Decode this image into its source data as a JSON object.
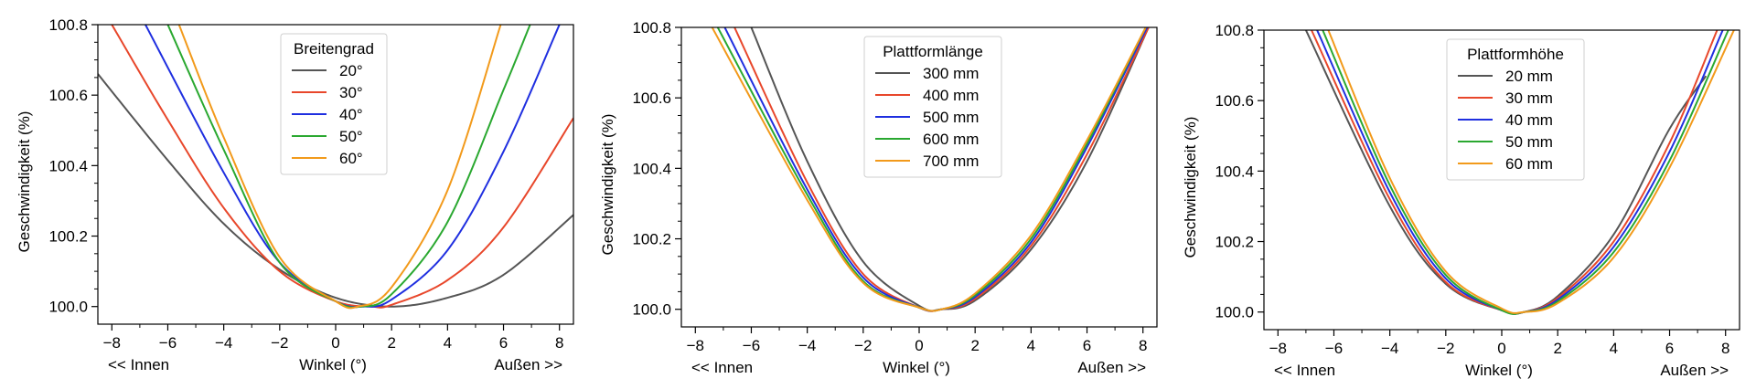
{
  "chart_data": [
    {
      "type": "line",
      "title": "",
      "xlabel": "Winkel (°)",
      "xlabel_left": "<< Innen",
      "xlabel_right": "Außen >>",
      "ylabel": "Geschwindigkeit (%)",
      "xlim": [
        -8.5,
        8.5
      ],
      "ylim": [
        99.95,
        100.8
      ],
      "xticks": [
        -8,
        -6,
        -4,
        -2,
        0,
        2,
        4,
        6,
        8
      ],
      "xtick_labels": [
        "−8",
        "−6",
        "−4",
        "−2",
        "0",
        "2",
        "4",
        "6",
        "8"
      ],
      "yticks": [
        100.0,
        100.2,
        100.4,
        100.6,
        100.8
      ],
      "ytick_labels": [
        "100.0",
        "100.2",
        "100.4",
        "100.6",
        "100.8"
      ],
      "grid": false,
      "legend": {
        "title": "Breitengrad",
        "placement": "top-center"
      },
      "series": [
        {
          "name": "20°",
          "color": "#555555",
          "min_x": 2.0,
          "min_y": 100.0,
          "points": [
            [
              -8.5,
              100.66
            ],
            [
              -6,
              100.415
            ],
            [
              -4,
              100.235
            ],
            [
              -2,
              100.105
            ],
            [
              0,
              100.025
            ],
            [
              2,
              100.0
            ],
            [
              4,
              100.025
            ],
            [
              6,
              100.09
            ],
            [
              8.5,
              100.26
            ]
          ]
        },
        {
          "name": "30°",
          "color": "#e8472b",
          "min_x": 1.3,
          "min_y": 100.0,
          "points": [
            [
              -8,
              100.8
            ],
            [
              -6,
              100.53
            ],
            [
              -4,
              100.28
            ],
            [
              -2,
              100.1
            ],
            [
              0,
              100.015
            ],
            [
              2,
              100.005
            ],
            [
              4,
              100.075
            ],
            [
              6,
              100.225
            ],
            [
              8.5,
              100.535
            ]
          ]
        },
        {
          "name": "40°",
          "color": "#1f2fe0",
          "min_x": 1.0,
          "min_y": 100.0,
          "points": [
            [
              -6.8,
              100.8
            ],
            [
              -4,
              100.38
            ],
            [
              -2,
              100.125
            ],
            [
              0,
              100.015
            ],
            [
              2,
              100.02
            ],
            [
              4,
              100.16
            ],
            [
              6,
              100.44
            ],
            [
              8,
              100.8
            ]
          ]
        },
        {
          "name": "50°",
          "color": "#2aa830",
          "min_x": 0.9,
          "min_y": 100.0,
          "points": [
            [
              -6.0,
              100.8
            ],
            [
              -4,
              100.445
            ],
            [
              -2,
              100.125
            ],
            [
              0,
              100.015
            ],
            [
              2,
              100.035
            ],
            [
              4,
              100.24
            ],
            [
              6,
              100.615
            ],
            [
              6.95,
              100.8
            ]
          ]
        },
        {
          "name": "60°",
          "color": "#f29a1b",
          "min_x": 0.8,
          "min_y": 100.0,
          "points": [
            [
              -5.6,
              100.8
            ],
            [
              -4,
              100.48
            ],
            [
              -2,
              100.14
            ],
            [
              0,
              100.015
            ],
            [
              2,
              100.055
            ],
            [
              4,
              100.33
            ],
            [
              5.9,
              100.8
            ]
          ]
        }
      ]
    },
    {
      "type": "line",
      "title": "",
      "xlabel": "Winkel (°)",
      "xlabel_left": "<< Innen",
      "xlabel_right": "Außen >>",
      "ylabel": "Geschwindigkeit (%)",
      "xlim": [
        -8.5,
        8.5
      ],
      "ylim": [
        99.95,
        100.8
      ],
      "xticks": [
        -8,
        -6,
        -4,
        -2,
        0,
        2,
        4,
        6,
        8
      ],
      "xtick_labels": [
        "−8",
        "−6",
        "−4",
        "−2",
        "0",
        "2",
        "4",
        "6",
        "8"
      ],
      "yticks": [
        100.0,
        100.2,
        100.4,
        100.6,
        100.8
      ],
      "ytick_labels": [
        "100.0",
        "100.2",
        "100.4",
        "100.6",
        "100.8"
      ],
      "grid": false,
      "legend": {
        "title": "Plattformlänge",
        "placement": "top-center"
      },
      "series": [
        {
          "name": "300 mm",
          "color": "#555555",
          "min_x": 0.8,
          "min_y": 100.0,
          "points": [
            [
              -6.0,
              100.8
            ],
            [
              -4,
              100.42
            ],
            [
              -2,
              100.135
            ],
            [
              0,
              100.01
            ],
            [
              2,
              100.025
            ],
            [
              4,
              100.17
            ],
            [
              6,
              100.42
            ],
            [
              8.2,
              100.8
            ]
          ]
        },
        {
          "name": "400 mm",
          "color": "#e8472b",
          "min_x": 0.8,
          "min_y": 100.0,
          "points": [
            [
              -6.6,
              100.8
            ],
            [
              -4,
              100.36
            ],
            [
              -2,
              100.1
            ],
            [
              0,
              100.005
            ],
            [
              2,
              100.03
            ],
            [
              4,
              100.18
            ],
            [
              6,
              100.44
            ],
            [
              8.2,
              100.8
            ]
          ]
        },
        {
          "name": "500 mm",
          "color": "#1f2fe0",
          "min_x": 0.8,
          "min_y": 100.0,
          "points": [
            [
              -6.95,
              100.8
            ],
            [
              -4,
              100.34
            ],
            [
              -2,
              100.09
            ],
            [
              0,
              100.005
            ],
            [
              2,
              100.035
            ],
            [
              4,
              100.19
            ],
            [
              6,
              100.46
            ],
            [
              8.15,
              100.8
            ]
          ]
        },
        {
          "name": "600 mm",
          "color": "#2aa830",
          "min_x": 0.8,
          "min_y": 100.0,
          "points": [
            [
              -7.2,
              100.8
            ],
            [
              -4,
              100.325
            ],
            [
              -2,
              100.08
            ],
            [
              0,
              100.005
            ],
            [
              2,
              100.04
            ],
            [
              4,
              100.2
            ],
            [
              6,
              100.47
            ],
            [
              8.1,
              100.8
            ]
          ]
        },
        {
          "name": "700 mm",
          "color": "#f29a1b",
          "min_x": 0.8,
          "min_y": 100.0,
          "points": [
            [
              -7.4,
              100.8
            ],
            [
              -4,
              100.31
            ],
            [
              -2,
              100.075
            ],
            [
              0,
              100.005
            ],
            [
              2,
              100.045
            ],
            [
              4,
              100.21
            ],
            [
              6,
              100.48
            ],
            [
              8.1,
              100.8
            ]
          ]
        }
      ]
    },
    {
      "type": "line",
      "title": "",
      "xlabel": "Winkel (°)",
      "xlabel_left": "<< Innen",
      "xlabel_right": "Außen >>",
      "ylabel": "Geschwindigkeit (%)",
      "xlim": [
        -8.5,
        8.5
      ],
      "ylim": [
        99.95,
        100.8
      ],
      "xticks": [
        -8,
        -6,
        -4,
        -2,
        0,
        2,
        4,
        6,
        8
      ],
      "xtick_labels": [
        "−8",
        "−6",
        "−4",
        "−2",
        "0",
        "2",
        "4",
        "6",
        "8"
      ],
      "yticks": [
        100.0,
        100.2,
        100.4,
        100.6,
        100.8
      ],
      "ytick_labels": [
        "100.0",
        "100.2",
        "100.4",
        "100.6",
        "100.8"
      ],
      "grid": false,
      "legend": {
        "title": "Plattformhöhe",
        "placement": "top-center"
      },
      "series": [
        {
          "name": "20 mm",
          "color": "#555555",
          "min_x": 0.8,
          "min_y": 100.0,
          "points": [
            [
              -7.0,
              100.8
            ],
            [
              -4,
              100.3
            ],
            [
              -2,
              100.08
            ],
            [
              0,
              100.005
            ],
            [
              2,
              100.045
            ],
            [
              4,
              100.22
            ],
            [
              6,
              100.52
            ],
            [
              7.3,
              100.67
            ]
          ]
        },
        {
          "name": "30 mm",
          "color": "#e8472b",
          "min_x": 0.8,
          "min_y": 100.0,
          "points": [
            [
              -6.8,
              100.8
            ],
            [
              -4,
              100.32
            ],
            [
              -2,
              100.085
            ],
            [
              0,
              100.005
            ],
            [
              2,
              100.04
            ],
            [
              4,
              100.2
            ],
            [
              6,
              100.48
            ],
            [
              7.7,
              100.8
            ]
          ]
        },
        {
          "name": "40 mm",
          "color": "#1f2fe0",
          "min_x": 0.8,
          "min_y": 100.0,
          "points": [
            [
              -6.6,
              100.8
            ],
            [
              -4,
              100.34
            ],
            [
              -2,
              100.095
            ],
            [
              0,
              100.005
            ],
            [
              2,
              100.035
            ],
            [
              4,
              100.185
            ],
            [
              6,
              100.455
            ],
            [
              7.9,
              100.8
            ]
          ]
        },
        {
          "name": "50 mm",
          "color": "#2aa830",
          "min_x": 0.8,
          "min_y": 100.0,
          "points": [
            [
              -6.4,
              100.8
            ],
            [
              -4,
              100.36
            ],
            [
              -2,
              100.105
            ],
            [
              0,
              100.005
            ],
            [
              2,
              100.03
            ],
            [
              4,
              100.17
            ],
            [
              6,
              100.43
            ],
            [
              8.1,
              100.8
            ]
          ]
        },
        {
          "name": "60 mm",
          "color": "#f29a1b",
          "min_x": 0.8,
          "min_y": 100.0,
          "points": [
            [
              -6.2,
              100.8
            ],
            [
              -4,
              100.38
            ],
            [
              -2,
              100.115
            ],
            [
              0,
              100.01
            ],
            [
              2,
              100.025
            ],
            [
              4,
              100.155
            ],
            [
              6,
              100.41
            ],
            [
              8.3,
              100.8
            ]
          ]
        }
      ]
    }
  ]
}
